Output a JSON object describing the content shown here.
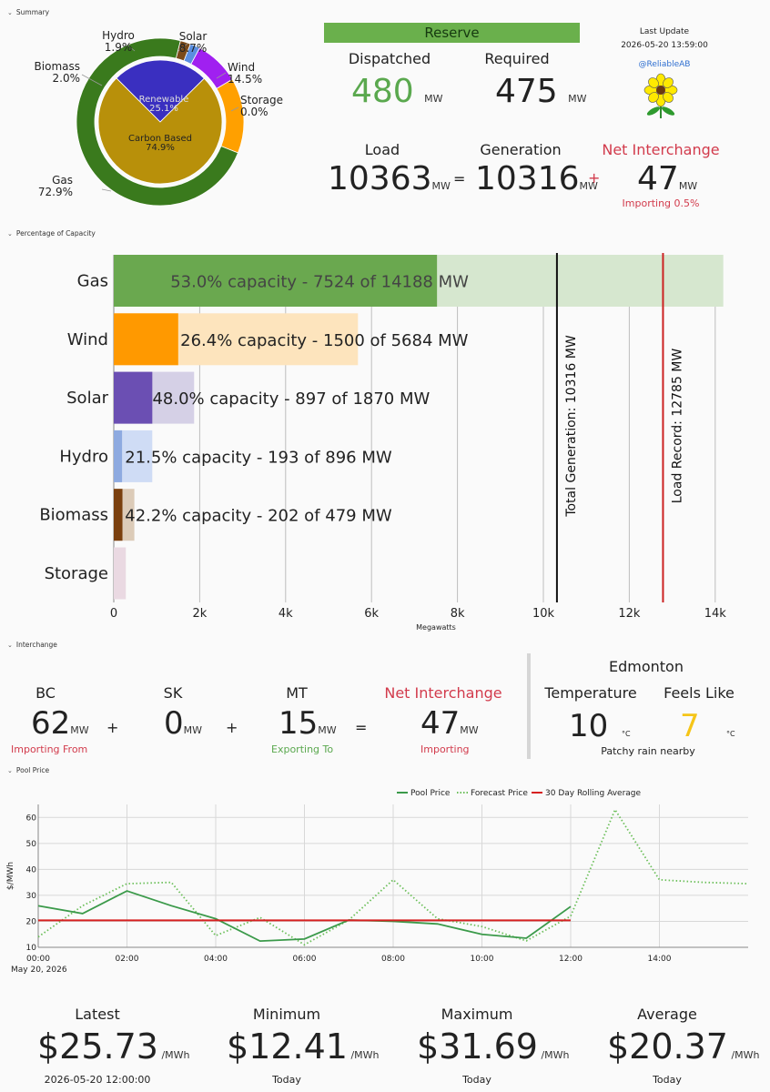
{
  "sections": {
    "summary": "Summary",
    "capacity": "Percentage of Capacity",
    "interchange": "Interchange",
    "pool": "Pool Price"
  },
  "donut": {
    "outer": [
      {
        "name": "Gas",
        "value": 72.9,
        "color": "#3a7a1d",
        "label": "Gas",
        "pct": "72.9%"
      },
      {
        "name": "Biomass",
        "value": 2.0,
        "color": "#7a4a1a",
        "label": "Biomass",
        "pct": "2.0%"
      },
      {
        "name": "Hydro",
        "value": 1.9,
        "color": "#5a8ee0",
        "label": "Hydro",
        "pct": "1.9%"
      },
      {
        "name": "Solar",
        "value": 8.7,
        "color": "#a020f0",
        "label": "Solar",
        "pct": "8.7%"
      },
      {
        "name": "Wind",
        "value": 14.5,
        "color": "#ffa000",
        "label": "Wind",
        "pct": "14.5%"
      },
      {
        "name": "Storage",
        "value": 0.0,
        "color": "#e0c0d0",
        "label": "Storage",
        "pct": "0.0%"
      }
    ],
    "inner": [
      {
        "name": "Renewable",
        "value": 25.1,
        "color": "#3a2fc0",
        "label": "Renewable",
        "pct": "25.1%"
      },
      {
        "name": "Carbon Based",
        "value": 74.9,
        "color": "#b8900a",
        "label": "Carbon Based",
        "pct": "74.9%"
      }
    ]
  },
  "reserve": {
    "banner": "Reserve",
    "dispatched_label": "Dispatched",
    "dispatched_value": "480",
    "required_label": "Required",
    "required_value": "475",
    "unit": "MW"
  },
  "update": {
    "label": "Last Update",
    "time": "2026-05-20 13:59:00",
    "handle": "@ReliableAB"
  },
  "balance": {
    "load_label": "Load",
    "load_value": "10363",
    "eq": "=",
    "gen_label": "Generation",
    "gen_value": "10316",
    "plus": "+",
    "net_label": "Net Interchange",
    "net_value": "47",
    "net_sub": "Importing 0.5%",
    "unit": "MW"
  },
  "capacity": {
    "xlabel": "Megawatts",
    "xticks": [
      "0",
      "2k",
      "4k",
      "6k",
      "8k",
      "10k",
      "12k",
      "14k"
    ],
    "xmax": 15000,
    "rows": [
      {
        "name": "Gas",
        "gen": 7524,
        "cap": 14188,
        "text": "53.0% capacity - 7524 of 14188 MW",
        "color": "#6aa84f",
        "bg": "#d6e7cf"
      },
      {
        "name": "Wind",
        "gen": 1500,
        "cap": 5684,
        "text": "26.4% capacity - 1500 of 5684 MW",
        "color": "#ff9900",
        "bg": "#fde4bd"
      },
      {
        "name": "Solar",
        "gen": 897,
        "cap": 1870,
        "text": "48.0% capacity - 897 of 1870 MW",
        "color": "#6b4fb3",
        "bg": "#d5d0e6"
      },
      {
        "name": "Hydro",
        "gen": 193,
        "cap": 896,
        "text": "21.5% capacity - 193 of 896 MW",
        "color": "#8eaae0",
        "bg": "#cfdcf5"
      },
      {
        "name": "Biomass",
        "gen": 202,
        "cap": 479,
        "text": "42.2% capacity - 202 of 479 MW",
        "color": "#7a3f0e",
        "bg": "#dccbb8"
      },
      {
        "name": "Storage",
        "gen": 0,
        "cap": 280,
        "text": "",
        "color": "#c9a4b8",
        "bg": "#ead9e2"
      }
    ],
    "lines": [
      {
        "value": 10316,
        "label": "Total Generation: 10316 MW",
        "color": "#111111"
      },
      {
        "value": 12785,
        "label": "Load Record: 12785 MW",
        "color": "#cc2222"
      }
    ]
  },
  "interchange": {
    "bc": {
      "label": "BC",
      "value": "62",
      "sub": "Importing From"
    },
    "sk": {
      "label": "SK",
      "value": "0",
      "sub": ""
    },
    "mt": {
      "label": "MT",
      "value": "15",
      "sub": "Exporting To"
    },
    "net": {
      "label": "Net Interchange",
      "value": "47",
      "sub": "Importing"
    },
    "plus": "+",
    "eq": "=",
    "unit": "MW"
  },
  "weather": {
    "city": "Edmonton",
    "temp_label": "Temperature",
    "temp_value": "10",
    "feels_label": "Feels Like",
    "feels_value": "7",
    "unit": "°C",
    "condition": "Patchy rain nearby"
  },
  "chart_data": {
    "type": "line",
    "ylabel": "$/MWh",
    "date_label": "May 20, 2026",
    "legend": [
      "Pool Price",
      "Forecast Price",
      "30 Day Rolling Average"
    ],
    "ylim": [
      10,
      65
    ],
    "yticks": [
      10,
      20,
      30,
      40,
      50,
      60
    ],
    "xticks": [
      "00:00",
      "02:00",
      "04:00",
      "06:00",
      "08:00",
      "10:00",
      "12:00",
      "14:00"
    ],
    "series": [
      {
        "name": "Pool Price",
        "color": "#3b9a4a",
        "style": "solid",
        "x": [
          0,
          1,
          2,
          3,
          4,
          5,
          6,
          7,
          8,
          9,
          10,
          11,
          12
        ],
        "values": [
          26,
          23,
          31.7,
          26,
          21,
          12.4,
          13.2,
          20.5,
          20,
          19,
          15,
          13.5,
          25.7
        ]
      },
      {
        "name": "Forecast Price",
        "color": "#6cbf5a",
        "style": "dotted",
        "x": [
          0,
          1,
          2,
          3,
          4,
          5,
          6,
          7,
          8,
          9,
          10,
          11,
          12,
          13,
          14,
          15,
          16
        ],
        "values": [
          14,
          26,
          34.5,
          35,
          14.5,
          21.5,
          11,
          20.5,
          36,
          21,
          18,
          12.5,
          22,
          63,
          36,
          35,
          34.5
        ]
      },
      {
        "name": "30 Day Rolling Average",
        "color": "#d62020",
        "style": "solid",
        "x": [
          0,
          12
        ],
        "values": [
          20.37,
          20.37
        ]
      }
    ]
  },
  "stats": {
    "unit": "/MWh",
    "items": [
      {
        "label": "Latest",
        "value": "$25.73",
        "sub": "2026-05-20 12:00:00"
      },
      {
        "label": "Minimum",
        "value": "$12.41",
        "sub": "Today"
      },
      {
        "label": "Maximum",
        "value": "$31.69",
        "sub": "Today"
      },
      {
        "label": "Average",
        "value": "$20.37",
        "sub": "Today"
      }
    ]
  }
}
